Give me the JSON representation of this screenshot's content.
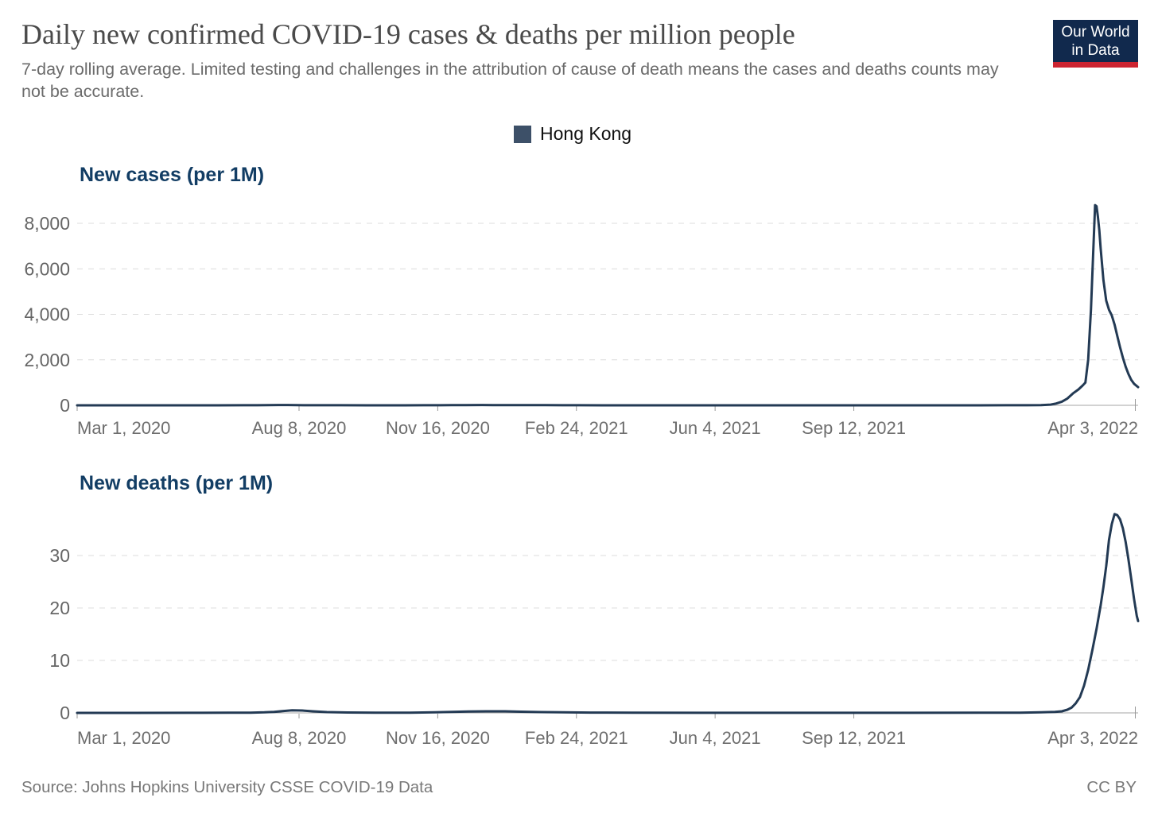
{
  "header": {
    "title": "Daily new confirmed COVID-19 cases & deaths per million people",
    "subtitle": "7-day rolling average. Limited testing and challenges in the attribution of cause of death means the cases and deaths counts may not be accurate.",
    "logo": {
      "line1": "Our World",
      "line2": "in Data"
    }
  },
  "legend": {
    "label": "Hong Kong"
  },
  "colors": {
    "accent_title": "#123d64",
    "series": "#233a54",
    "legend_swatch": "#3d5068",
    "logo_bg": "#11294d",
    "logo_red": "#cd2431"
  },
  "footer": {
    "source": "Source: Johns Hopkins University CSSE COVID-19 Data",
    "license": "CC BY"
  },
  "chart_data": [
    {
      "type": "line",
      "title": "New cases (per 1M)",
      "xlabel": "",
      "ylabel": "New cases per million people",
      "grid": "dashed-horizontal",
      "legend_position": "top-center",
      "x_domain_days": [
        0,
        765
      ],
      "x_domain_dates": [
        "Mar 1, 2020",
        "Apr 5, 2022"
      ],
      "ylim": [
        0,
        9200
      ],
      "x_ticks": [
        {
          "day": 0,
          "label": "Mar 1, 2020"
        },
        {
          "day": 160,
          "label": "Aug 8, 2020"
        },
        {
          "day": 260,
          "label": "Nov 16, 2020"
        },
        {
          "day": 360,
          "label": "Feb 24, 2021"
        },
        {
          "day": 460,
          "label": "Jun 4, 2021"
        },
        {
          "day": 560,
          "label": "Sep 12, 2021"
        },
        {
          "day": 763,
          "label": "Apr 3, 2022"
        }
      ],
      "y_ticks": [
        {
          "value": 0,
          "label": "0"
        },
        {
          "value": 2000,
          "label": "2,000"
        },
        {
          "value": 4000,
          "label": "4,000"
        },
        {
          "value": 6000,
          "label": "6,000"
        },
        {
          "value": 8000,
          "label": "8,000"
        }
      ],
      "series": [
        {
          "name": "Hong Kong",
          "points": [
            [
              0,
              0.5
            ],
            [
              20,
              0.5
            ],
            [
              40,
              1
            ],
            [
              60,
              1
            ],
            [
              80,
              1
            ],
            [
              100,
              1.5
            ],
            [
              120,
              2
            ],
            [
              130,
              4
            ],
            [
              138,
              8
            ],
            [
              145,
              15
            ],
            [
              152,
              14
            ],
            [
              158,
              10
            ],
            [
              165,
              5
            ],
            [
              175,
              3
            ],
            [
              190,
              2
            ],
            [
              210,
              1.5
            ],
            [
              230,
              1.5
            ],
            [
              250,
              2
            ],
            [
              262,
              5
            ],
            [
              270,
              9
            ],
            [
              280,
              12
            ],
            [
              292,
              13
            ],
            [
              300,
              11
            ],
            [
              310,
              9
            ],
            [
              318,
              6.5
            ],
            [
              328,
              7
            ],
            [
              338,
              6
            ],
            [
              350,
              4
            ],
            [
              362,
              2.5
            ],
            [
              380,
              1.5
            ],
            [
              400,
              1
            ],
            [
              430,
              0.8
            ],
            [
              460,
              0.5
            ],
            [
              500,
              0.3
            ],
            [
              540,
              0.3
            ],
            [
              580,
              0.4
            ],
            [
              620,
              0.6
            ],
            [
              650,
              1
            ],
            [
              670,
              2
            ],
            [
              685,
              5
            ],
            [
              695,
              12
            ],
            [
              702,
              30
            ],
            [
              706,
              80
            ],
            [
              710,
              160
            ],
            [
              714,
              300
            ],
            [
              718,
              520
            ],
            [
              722,
              700
            ],
            [
              725,
              870
            ],
            [
              727,
              1000
            ],
            [
              729,
              2000
            ],
            [
              731,
              4200
            ],
            [
              733,
              7300
            ],
            [
              734,
              8800
            ],
            [
              735,
              8750
            ],
            [
              736,
              8300
            ],
            [
              737,
              7700
            ],
            [
              738,
              6900
            ],
            [
              740,
              5500
            ],
            [
              742,
              4600
            ],
            [
              744,
              4200
            ],
            [
              746,
              3950
            ],
            [
              748,
              3550
            ],
            [
              750,
              3050
            ],
            [
              752,
              2550
            ],
            [
              754,
              2100
            ],
            [
              756,
              1700
            ],
            [
              758,
              1380
            ],
            [
              760,
              1120
            ],
            [
              762,
              950
            ],
            [
              765,
              800
            ]
          ]
        }
      ]
    },
    {
      "type": "line",
      "title": "New deaths (per 1M)",
      "xlabel": "",
      "ylabel": "New deaths per million people",
      "grid": "dashed-horizontal",
      "legend_position": "top-center",
      "x_domain_days": [
        0,
        765
      ],
      "x_domain_dates": [
        "Mar 1, 2020",
        "Apr 5, 2022"
      ],
      "ylim": [
        0,
        40
      ],
      "x_ticks": [
        {
          "day": 0,
          "label": "Mar 1, 2020"
        },
        {
          "day": 160,
          "label": "Aug 8, 2020"
        },
        {
          "day": 260,
          "label": "Nov 16, 2020"
        },
        {
          "day": 360,
          "label": "Feb 24, 2021"
        },
        {
          "day": 460,
          "label": "Jun 4, 2021"
        },
        {
          "day": 560,
          "label": "Sep 12, 2021"
        },
        {
          "day": 763,
          "label": "Apr 3, 2022"
        }
      ],
      "y_ticks": [
        {
          "value": 0,
          "label": "0"
        },
        {
          "value": 10,
          "label": "10"
        },
        {
          "value": 20,
          "label": "20"
        },
        {
          "value": 30,
          "label": "30"
        }
      ],
      "series": [
        {
          "name": "Hong Kong",
          "points": [
            [
              0,
              0
            ],
            [
              40,
              0
            ],
            [
              80,
              0.02
            ],
            [
              110,
              0.03
            ],
            [
              125,
              0.05
            ],
            [
              135,
              0.1
            ],
            [
              142,
              0.2
            ],
            [
              148,
              0.35
            ],
            [
              155,
              0.5
            ],
            [
              162,
              0.45
            ],
            [
              170,
              0.3
            ],
            [
              180,
              0.15
            ],
            [
              195,
              0.08
            ],
            [
              215,
              0.04
            ],
            [
              240,
              0.05
            ],
            [
              258,
              0.1
            ],
            [
              270,
              0.2
            ],
            [
              282,
              0.27
            ],
            [
              295,
              0.3
            ],
            [
              308,
              0.3
            ],
            [
              320,
              0.22
            ],
            [
              335,
              0.15
            ],
            [
              350,
              0.1
            ],
            [
              370,
              0.06
            ],
            [
              400,
              0.04
            ],
            [
              450,
              0.02
            ],
            [
              520,
              0.02
            ],
            [
              590,
              0.02
            ],
            [
              650,
              0.03
            ],
            [
              680,
              0.05
            ],
            [
              695,
              0.1
            ],
            [
              705,
              0.2
            ],
            [
              710,
              0.3
            ],
            [
              714,
              0.6
            ],
            [
              717,
              1
            ],
            [
              720,
              1.8
            ],
            [
              723,
              3
            ],
            [
              726,
              5.2
            ],
            [
              729,
              8.2
            ],
            [
              732,
              12
            ],
            [
              735,
              16
            ],
            [
              738,
              20.5
            ],
            [
              740,
              24
            ],
            [
              742,
              28
            ],
            [
              744,
              33
            ],
            [
              746,
              36
            ],
            [
              748,
              37.9
            ],
            [
              750,
              37.7
            ],
            [
              752,
              36.9
            ],
            [
              754,
              35.2
            ],
            [
              756,
              32.6
            ],
            [
              758,
              29.3
            ],
            [
              760,
              25.6
            ],
            [
              762,
              21.8
            ],
            [
              764,
              18.5
            ],
            [
              765,
              17.5
            ]
          ]
        }
      ]
    }
  ]
}
